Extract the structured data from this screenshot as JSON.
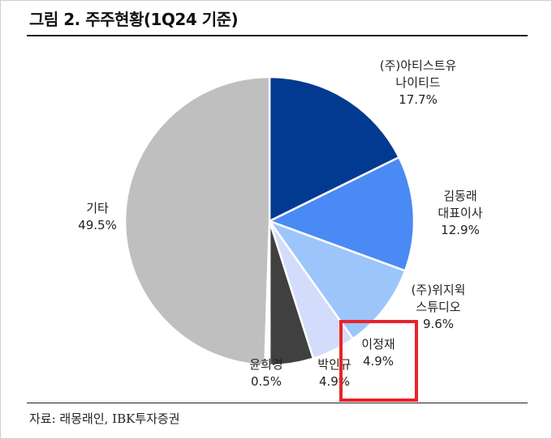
{
  "figure": {
    "title": "그림 2. 주주현황(1Q24 기준)",
    "source": "자료: 래몽래인, IBK투자증권"
  },
  "colors": {
    "highlight_box": "#e8232a"
  },
  "chart_data": {
    "type": "pie",
    "title": "그림 2. 주주현황(1Q24 기준)",
    "unit": "%",
    "start_angle": "12 o'clock",
    "direction": "clockwise",
    "highlighted": "이정재",
    "slices": [
      {
        "name_lines": [
          "(주)아티스트유",
          "나이티드"
        ],
        "value": 17.7,
        "label": "17.7%",
        "color": "#033a91"
      },
      {
        "name_lines": [
          "김동래",
          "대표이사"
        ],
        "value": 12.9,
        "label": "12.9%",
        "color": "#4a8af4"
      },
      {
        "name_lines": [
          "(주)위지윅",
          "스튜디오"
        ],
        "value": 9.6,
        "label": "9.6%",
        "color": "#9cc5fb"
      },
      {
        "name_lines": [
          "이정재"
        ],
        "value": 4.9,
        "label": "4.9%",
        "color": "#d3dcfa"
      },
      {
        "name_lines": [
          "박인규"
        ],
        "value": 4.9,
        "label": "4.9%",
        "color": "#404040"
      },
      {
        "name_lines": [
          "윤희경"
        ],
        "value": 0.5,
        "label": "0.5%",
        "color": "#ffffff"
      },
      {
        "name_lines": [
          "기타"
        ],
        "value": 49.5,
        "label": "49.5%",
        "color": "#bfbfbf"
      }
    ]
  }
}
